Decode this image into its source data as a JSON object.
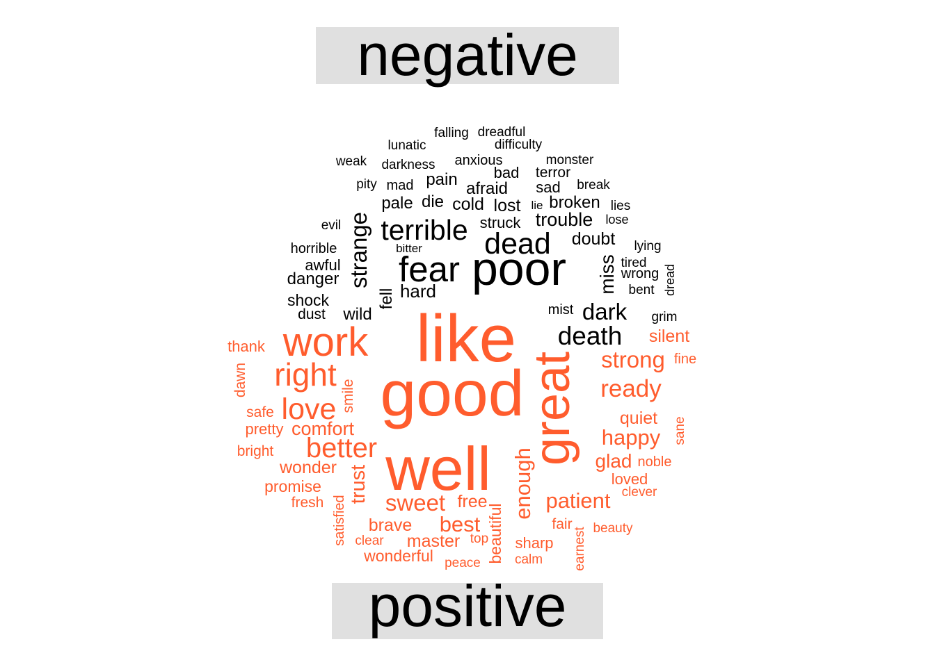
{
  "chart_data": {
    "type": "wordcloud",
    "colors": {
      "negative": "#000000",
      "positive": "#FF5C2D",
      "label_box": "#E0E0E0"
    },
    "groups": [
      {
        "name": "negative",
        "color": "#000000",
        "words": [
          {
            "word": "poor",
            "weight": 100
          },
          {
            "word": "fear",
            "weight": 72
          },
          {
            "word": "dead",
            "weight": 58
          },
          {
            "word": "terrible",
            "weight": 56
          },
          {
            "word": "strange",
            "weight": 48
          },
          {
            "word": "death",
            "weight": 50
          },
          {
            "word": "dark",
            "weight": 44
          },
          {
            "word": "miss",
            "weight": 38
          },
          {
            "word": "fell",
            "weight": 34
          },
          {
            "word": "hard",
            "weight": 34
          },
          {
            "word": "trouble",
            "weight": 34
          },
          {
            "word": "wild",
            "weight": 30
          },
          {
            "word": "doubt",
            "weight": 30
          },
          {
            "word": "afraid",
            "weight": 28
          },
          {
            "word": "lost",
            "weight": 28
          },
          {
            "word": "cold",
            "weight": 28
          },
          {
            "word": "pale",
            "weight": 26
          },
          {
            "word": "die",
            "weight": 26
          },
          {
            "word": "pain",
            "weight": 26
          },
          {
            "word": "broken",
            "weight": 24
          },
          {
            "word": "struck",
            "weight": 24
          },
          {
            "word": "danger",
            "weight": 24
          },
          {
            "word": "shock",
            "weight": 24
          },
          {
            "word": "sad",
            "weight": 24
          },
          {
            "word": "bad",
            "weight": 24
          },
          {
            "word": "anxious",
            "weight": 22
          },
          {
            "word": "awful",
            "weight": 22
          },
          {
            "word": "wrong",
            "weight": 22
          },
          {
            "word": "horrible",
            "weight": 20
          },
          {
            "word": "mad",
            "weight": 20
          },
          {
            "word": "darkness",
            "weight": 20
          },
          {
            "word": "terror",
            "weight": 20
          },
          {
            "word": "monster",
            "weight": 20
          },
          {
            "word": "dust",
            "weight": 20
          },
          {
            "word": "mist",
            "weight": 20
          },
          {
            "word": "difficulty",
            "weight": 19
          },
          {
            "word": "lunatic",
            "weight": 19
          },
          {
            "word": "falling",
            "weight": 19
          },
          {
            "word": "dreadful",
            "weight": 19
          },
          {
            "word": "weak",
            "weight": 19
          },
          {
            "word": "pity",
            "weight": 19
          },
          {
            "word": "evil",
            "weight": 19
          },
          {
            "word": "break",
            "weight": 19
          },
          {
            "word": "lies",
            "weight": 19
          },
          {
            "word": "lose",
            "weight": 18
          },
          {
            "word": "lying",
            "weight": 19
          },
          {
            "word": "tired",
            "weight": 19
          },
          {
            "word": "bent",
            "weight": 19
          },
          {
            "word": "grim",
            "weight": 19
          },
          {
            "word": "dread",
            "weight": 18
          },
          {
            "word": "bitter",
            "weight": 17
          },
          {
            "word": "lie",
            "weight": 17
          }
        ]
      },
      {
        "name": "positive",
        "color": "#FF5C2D",
        "words": [
          {
            "word": "like",
            "weight": 100
          },
          {
            "word": "good",
            "weight": 96
          },
          {
            "word": "well",
            "weight": 90
          },
          {
            "word": "great",
            "weight": 78
          },
          {
            "word": "work",
            "weight": 62
          },
          {
            "word": "right",
            "weight": 52
          },
          {
            "word": "love",
            "weight": 46
          },
          {
            "word": "better",
            "weight": 42
          },
          {
            "word": "ready",
            "weight": 38
          },
          {
            "word": "strong",
            "weight": 36
          },
          {
            "word": "sweet",
            "weight": 36
          },
          {
            "word": "enough",
            "weight": 36
          },
          {
            "word": "best",
            "weight": 34
          },
          {
            "word": "happy",
            "weight": 32
          },
          {
            "word": "patient",
            "weight": 32
          },
          {
            "word": "trust",
            "weight": 30
          },
          {
            "word": "glad",
            "weight": 28
          },
          {
            "word": "comfort",
            "weight": 28
          },
          {
            "word": "brave",
            "weight": 26
          },
          {
            "word": "wonder",
            "weight": 26
          },
          {
            "word": "quiet",
            "weight": 26
          },
          {
            "word": "silent",
            "weight": 26
          },
          {
            "word": "master",
            "weight": 26
          },
          {
            "word": "free",
            "weight": 26
          },
          {
            "word": "wonderful",
            "weight": 24
          },
          {
            "word": "promise",
            "weight": 24
          },
          {
            "word": "beautiful",
            "weight": 24
          },
          {
            "word": "sharp",
            "weight": 24
          },
          {
            "word": "pretty",
            "weight": 22
          },
          {
            "word": "loved",
            "weight": 22
          },
          {
            "word": "thank",
            "weight": 22
          },
          {
            "word": "safe",
            "weight": 21
          },
          {
            "word": "dawn",
            "weight": 21
          },
          {
            "word": "smile",
            "weight": 21
          },
          {
            "word": "bright",
            "weight": 21
          },
          {
            "word": "fair",
            "weight": 21
          },
          {
            "word": "fresh",
            "weight": 21
          },
          {
            "word": "noble",
            "weight": 20
          },
          {
            "word": "fine",
            "weight": 20
          },
          {
            "word": "satisfied",
            "weight": 20
          },
          {
            "word": "clever",
            "weight": 19
          },
          {
            "word": "beauty",
            "weight": 19
          },
          {
            "word": "earnest",
            "weight": 19
          },
          {
            "word": "sane",
            "weight": 19
          },
          {
            "word": "calm",
            "weight": 19
          },
          {
            "word": "peace",
            "weight": 19
          },
          {
            "word": "clear",
            "weight": 19
          },
          {
            "word": "top",
            "weight": 19
          }
        ]
      }
    ]
  }
}
